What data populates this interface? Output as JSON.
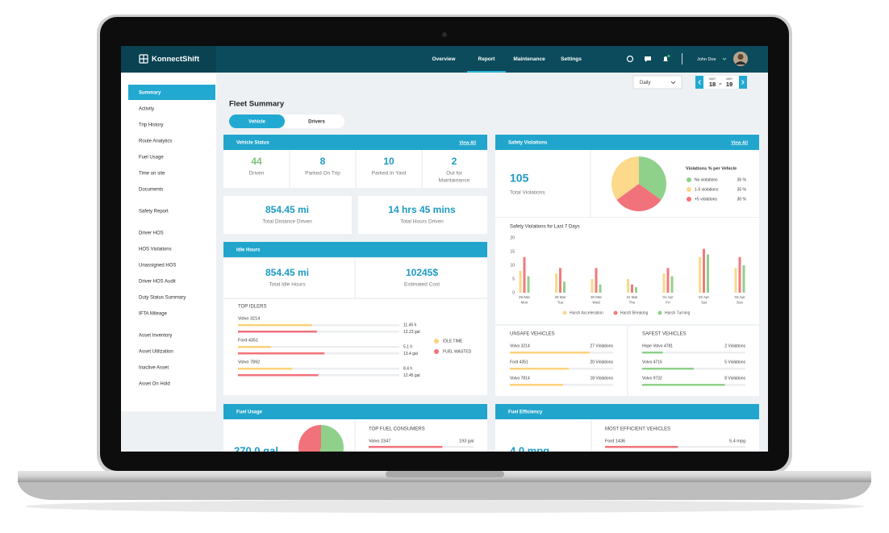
{
  "header": {
    "logo": "KonnectShift",
    "nav": [
      {
        "label": "Overview"
      },
      {
        "label": "Report",
        "active": true
      },
      {
        "label": "Maintenance"
      },
      {
        "label": "Settings"
      }
    ],
    "user": "John Doe"
  },
  "sidebar": {
    "groups": [
      [
        {
          "label": "Summary",
          "active": true
        },
        "Activity",
        "Trip History",
        "Route Analytics",
        "Fuel Usage",
        "Time on site",
        "Documents"
      ],
      [
        "Safety Report"
      ],
      [
        "Driver HOS",
        "HOS Violations",
        "Unassigned HOS",
        "Driver HOS Audit",
        "Duty Status Summary",
        "IFTA Mileage"
      ],
      [
        "Asset Inventory",
        "Asset Utilization",
        "Inactive Asset",
        "Asset On Hold"
      ]
    ]
  },
  "toolbar": {
    "period": "Daily",
    "dates": [
      {
        "month": "MAR",
        "day": "18"
      },
      {
        "month": "MAR",
        "day": "19"
      }
    ]
  },
  "title": "Fleet Summary",
  "tabs": [
    {
      "label": "Vehicle",
      "active": true
    },
    {
      "label": "Drivers"
    }
  ],
  "vehicle_status": {
    "title": "Vehicle Status",
    "link": "View All",
    "stats": [
      {
        "value": 44,
        "label": "Driven",
        "color": "#7cc47a"
      },
      {
        "value": 8,
        "label": "Parked On Trip",
        "color": "#1e9ac4"
      },
      {
        "value": 10,
        "label": "Parked In Yard",
        "color": "#1e9ac4"
      },
      {
        "value": 2,
        "label": [
          "Out for",
          "Maintainance"
        ],
        "color": "#1e9ac4"
      }
    ]
  },
  "totals": [
    {
      "value": "854.45 mi",
      "label": "Total Distance Driven"
    },
    {
      "value": "14 hrs 45 mins",
      "label": "Total Hours Driven"
    }
  ],
  "idle_hours": {
    "title": "Idle Hours",
    "totals": [
      {
        "value": "854.45 mi",
        "label": "Total Idle Hours"
      },
      {
        "value": "10245$",
        "label": "Estimated Cost"
      }
    ],
    "top_idlers": {
      "title": "TOP IDLERS",
      "legend": [
        {
          "name": "IDLE TIME",
          "color": "#fcd27a"
        },
        {
          "name": "FUEL WASTED",
          "color": "#f2727b"
        }
      ],
      "vehicles": [
        {
          "name": "Volvo 3214",
          "idle_time": 11.45,
          "idle_time_label": "11.45 h",
          "fuel_wasted": 12.23,
          "fuel_wasted_label": "12.23 gal"
        },
        {
          "name": "Ford 4351",
          "idle_time": 5.1,
          "idle_time_label": "5.1 h",
          "fuel_wasted": 13.4,
          "fuel_wasted_label": "13.4 gal"
        },
        {
          "name": "Volvo 7892",
          "idle_time": 8.4,
          "idle_time_label": "8.4 h",
          "fuel_wasted": 12.45,
          "fuel_wasted_label": "12.45 gal"
        }
      ]
    }
  },
  "fuel_usage": {
    "title": "Fuel Usage",
    "total": "270.0 gal",
    "pie": [
      {
        "color": "#8fd18a",
        "value": 55
      },
      {
        "color": "#f2727b",
        "value": 45
      }
    ],
    "top_consumers": {
      "title": "TOP FUEL CONSUMERS",
      "vehicles": [
        {
          "name": "Volvo 2347",
          "value": 193,
          "label": "193 gal"
        }
      ]
    }
  },
  "safety_violations": {
    "title": "Safety Violations",
    "link": "View All",
    "total": 105,
    "total_label": "Total Violations",
    "pie": {
      "title": "Violations % per Vehicle",
      "slices": [
        {
          "name": "No violations",
          "color": "#8fd18a",
          "value": 35,
          "label": "35 %"
        },
        {
          "name": "1-5 violations",
          "color": "#fcd98b",
          "value": 35,
          "label": "35 %"
        },
        {
          "name": "+5 violations",
          "color": "#f2727b",
          "value": 30,
          "label": "30 %"
        }
      ]
    }
  },
  "chart_data": {
    "type": "bar",
    "title": "Safety Violations for Last 7 Days",
    "categories": [
      [
        "28 Mar",
        "Mon"
      ],
      [
        "29 Mar",
        "Tue"
      ],
      [
        "30 Mar",
        "Wed"
      ],
      [
        "31 Mar",
        "Thu"
      ],
      [
        "01 Apr",
        "Fri"
      ],
      [
        "02 Apr",
        "Sat"
      ],
      [
        "03 Apr",
        "Sun"
      ]
    ],
    "series": [
      {
        "name": "Harsh Acceleration",
        "color": "#f9d98c",
        "values": [
          8,
          7,
          5,
          5,
          7,
          13,
          9
        ]
      },
      {
        "name": "Harsh Breaking",
        "color": "#f27a7a",
        "values": [
          13,
          9,
          9,
          3,
          9,
          16,
          13
        ]
      },
      {
        "name": "Harsh Turning",
        "color": "#94cf8e",
        "values": [
          6,
          4,
          3,
          2,
          6,
          14,
          10
        ]
      }
    ],
    "ylim": [
      0,
      20
    ],
    "yticks": [
      0,
      5,
      10,
      15,
      20
    ],
    "grid": false
  },
  "unsafe_vehicles": {
    "title": "UNSAFE VEHICLES",
    "color": "#fcd27a",
    "vehicles": [
      {
        "name": "Volvo 3214",
        "value": 27,
        "label": "27 Violations"
      },
      {
        "name": "Ford 4351",
        "value": 20,
        "label": "20 Violations"
      },
      {
        "name": "Volvo 7814",
        "value": 18,
        "label": "18 Violations"
      }
    ]
  },
  "safest_vehicles": {
    "title": "SAFEST VEHICLES",
    "color": "#8fd18a",
    "vehicles": [
      {
        "name": "Hope Volvo 4781",
        "value": 2,
        "label": "2 Violations"
      },
      {
        "name": "Volvo 4716",
        "value": 5,
        "label": "5 Violations"
      },
      {
        "name": "Volvo 9732",
        "value": 8,
        "label": "8 Violations"
      }
    ]
  },
  "fuel_efficiency": {
    "title": "Fuel Efficiency",
    "total": "4.0 mpg",
    "most_efficient": {
      "title": "MOST EFFICIENT VEHICLES",
      "vehicles": [
        {
          "name": "Ford 1436",
          "value": 5.4,
          "label": "5.4 mpg"
        }
      ]
    }
  }
}
